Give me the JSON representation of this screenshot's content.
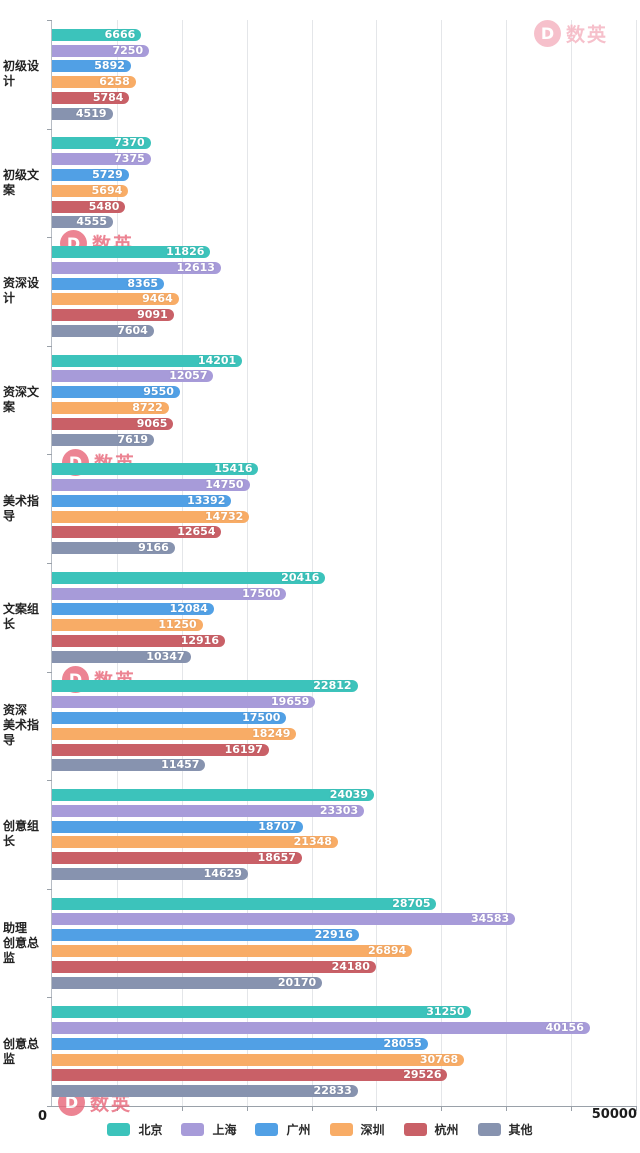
{
  "watermark": {
    "brand_text": "数英",
    "logo_letter": "D",
    "color_vivid": "#e96a7c",
    "color_light": "#f5b6c2"
  },
  "chart_data": {
    "type": "bar",
    "orientation": "horizontal",
    "title": "",
    "categories": [
      "初级设计",
      "初级文案",
      "资深设计",
      "资深文案",
      "美术指导",
      "文案组长",
      "资深美术指导",
      "创意组长",
      "助理创意总监",
      "创意总监"
    ],
    "categories_display": [
      [
        "初级设计"
      ],
      [
        "初级文案"
      ],
      [
        "资深设计"
      ],
      [
        "资深文案"
      ],
      [
        "美术指导"
      ],
      [
        "文案组长"
      ],
      [
        "资深",
        "美术指导"
      ],
      [
        "创意组长"
      ],
      [
        "助理",
        "创意总监"
      ],
      [
        "创意总监"
      ]
    ],
    "series": [
      {
        "name": "北京",
        "color": "#3cc3bb",
        "values": [
          6666,
          7370,
          11826,
          14201,
          15416,
          20416,
          22812,
          24039,
          28705,
          31250
        ]
      },
      {
        "name": "上海",
        "color": "#a79bd9",
        "values": [
          7250,
          7375,
          12613,
          12057,
          14750,
          17500,
          19659,
          23303,
          34583,
          40156
        ]
      },
      {
        "name": "广州",
        "color": "#51a0e5",
        "values": [
          5892,
          5729,
          8365,
          9550,
          13392,
          12084,
          17500,
          18707,
          22916,
          28055
        ]
      },
      {
        "name": "深圳",
        "color": "#f8ac66",
        "values": [
          6258,
          5694,
          9464,
          8722,
          14732,
          11250,
          18249,
          21348,
          26894,
          30768
        ]
      },
      {
        "name": "杭州",
        "color": "#c96067",
        "values": [
          5784,
          5480,
          9091,
          9065,
          12654,
          12916,
          16197,
          18657,
          24180,
          29526
        ]
      },
      {
        "name": "其他",
        "color": "#8793af",
        "values": [
          4519,
          4555,
          7604,
          7619,
          9166,
          10347,
          11457,
          14629,
          20170,
          22833
        ]
      }
    ],
    "xlim": [
      0,
      50000
    ],
    "x_axis_tick_labels": [
      "0",
      "50000"
    ],
    "grid": true,
    "gridline_intervals": 9,
    "bar_scale_max": 43600,
    "legend_position": "bottom",
    "value_labels_position": "inside-end"
  }
}
